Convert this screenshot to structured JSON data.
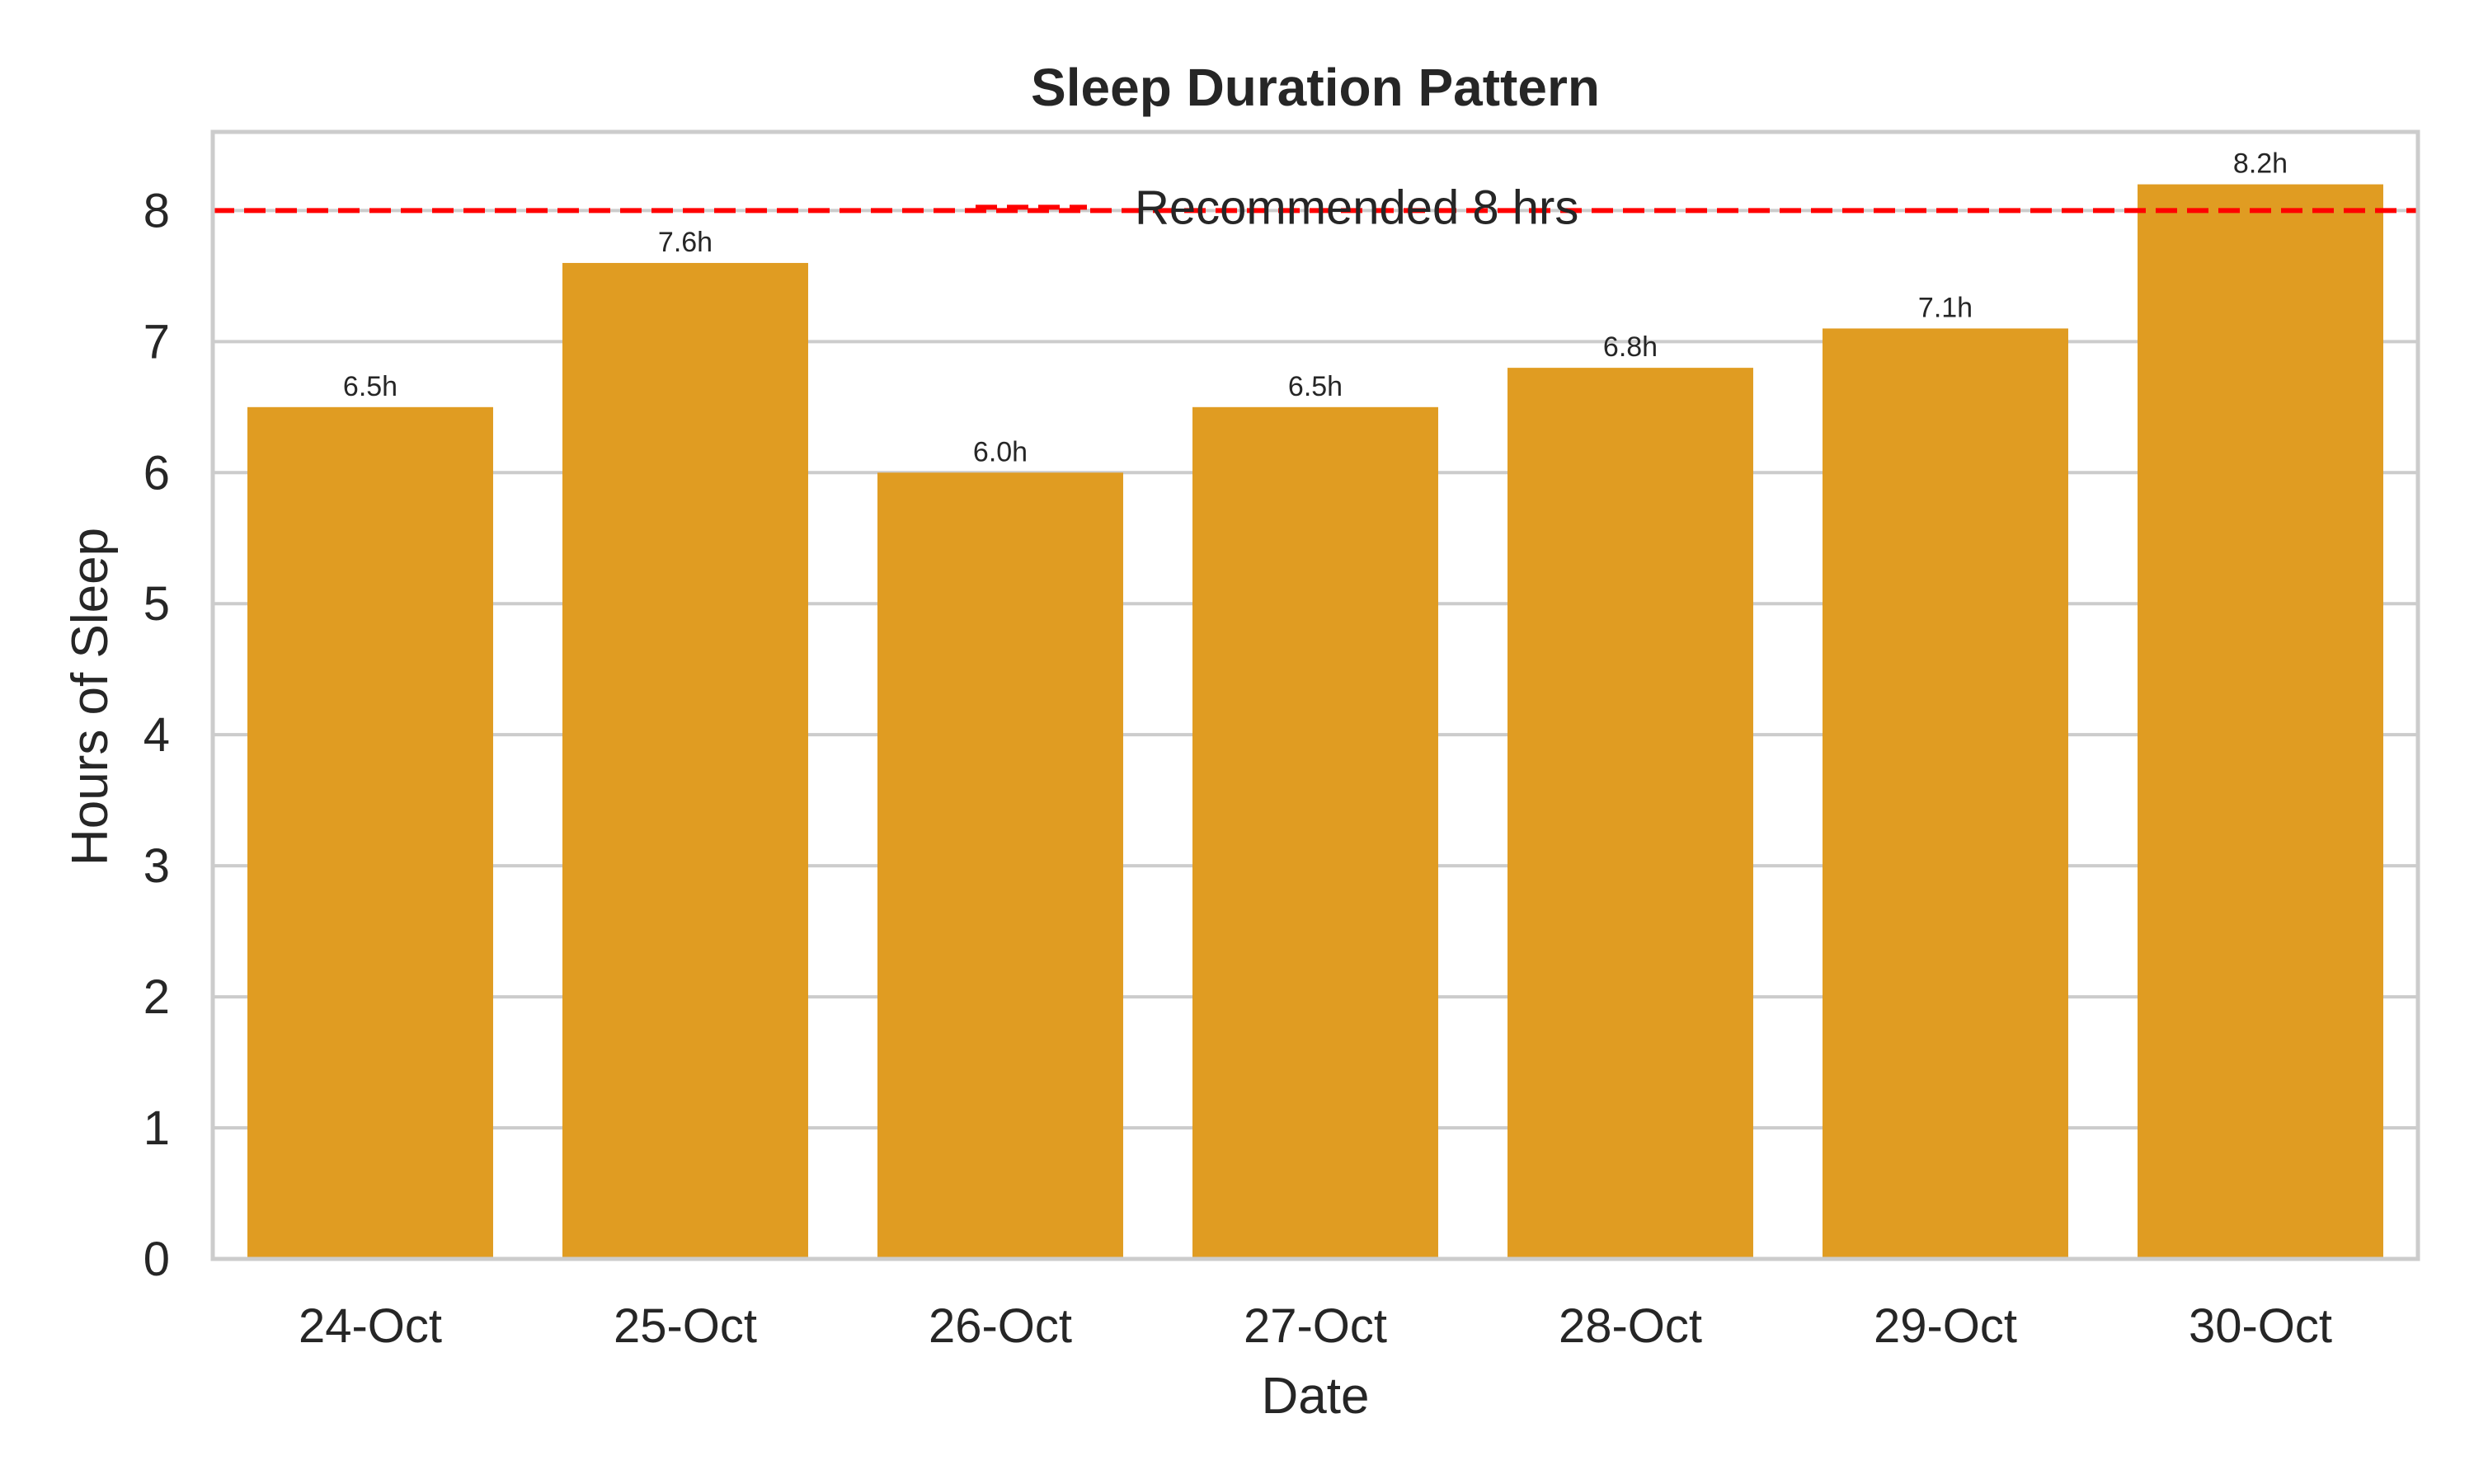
{
  "chart_data": {
    "type": "bar",
    "title": "Sleep Duration Pattern",
    "xlabel": "Date",
    "ylabel": "Hours of Sleep",
    "categories": [
      "24-Oct",
      "25-Oct",
      "26-Oct",
      "27-Oct",
      "28-Oct",
      "29-Oct",
      "30-Oct"
    ],
    "values": [
      6.5,
      7.6,
      6.0,
      6.5,
      6.8,
      7.1,
      8.2
    ],
    "data_labels": [
      "6.5h",
      "7.6h",
      "6.0h",
      "6.5h",
      "6.8h",
      "7.1h",
      "8.2h"
    ],
    "ylim": [
      0,
      8.6
    ],
    "yticks": [
      0,
      1,
      2,
      3,
      4,
      5,
      6,
      7,
      8
    ],
    "grid": "horizontal",
    "bar_color": "#e09c22",
    "reference_line": {
      "value": 8,
      "label": "Recommended 8 hrs",
      "color": "#ff0000",
      "style": "dashed"
    },
    "legend": {
      "placement": "top-center"
    }
  }
}
